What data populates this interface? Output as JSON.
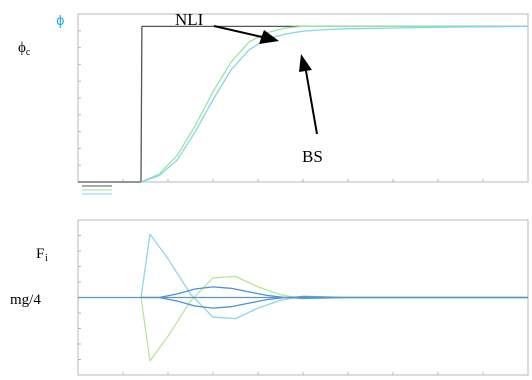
{
  "chart_data": [
    {
      "type": "line",
      "title": "",
      "annotations": {
        "ylabel": "ϕc",
        "corner_mark": "ϕ",
        "arrow_upper": "NLI",
        "arrow_lower": "BS"
      },
      "xlim": [
        0,
        1
      ],
      "ylim": [
        0,
        1.08
      ],
      "grid": false,
      "legend": "below-left",
      "series": [
        {
          "color": "#555555",
          "x": [
            0,
            0.14,
            0.142,
            1
          ],
          "y": [
            0,
            0,
            1,
            1
          ]
        },
        {
          "color": "#9ee2a0",
          "x": [
            0.14,
            0.18,
            0.22,
            0.26,
            0.3,
            0.34,
            0.38,
            0.42,
            0.46,
            0.5,
            0.55,
            0.6,
            0.7,
            0.8,
            1.0
          ],
          "y": [
            0,
            0.05,
            0.17,
            0.36,
            0.58,
            0.77,
            0.9,
            0.96,
            0.99,
            1.0,
            1.0,
            1.0,
            1.0,
            1.0,
            1.0
          ]
        },
        {
          "color": "#7fd8ea",
          "x": [
            0.14,
            0.18,
            0.22,
            0.26,
            0.3,
            0.34,
            0.38,
            0.42,
            0.46,
            0.5,
            0.55,
            0.6,
            0.7,
            0.8,
            1.0
          ],
          "y": [
            0,
            0.04,
            0.14,
            0.32,
            0.53,
            0.72,
            0.85,
            0.92,
            0.95,
            0.97,
            0.98,
            0.985,
            0.99,
            0.995,
            1.0
          ]
        }
      ]
    },
    {
      "type": "line",
      "title": "",
      "annotations": {
        "ylabel": "Fi",
        "ylabel_base": "F",
        "ylabel_sub": "i",
        "reference_label": "mg/4"
      },
      "xlim": [
        0,
        1
      ],
      "ylim": [
        -1.1,
        1.1
      ],
      "grid": false,
      "series": [
        {
          "color": "#8fd6e6",
          "x": [
            0.14,
            0.16,
            0.2,
            0.25,
            0.3,
            0.35,
            0.4,
            0.45,
            0.5,
            0.6,
            0.7,
            1.0
          ],
          "y": [
            0.0,
            0.9,
            0.55,
            0.05,
            -0.28,
            -0.3,
            -0.15,
            -0.04,
            0.02,
            0.0,
            0.0,
            0.0
          ]
        },
        {
          "color": "#b9e59b",
          "x": [
            0.14,
            0.16,
            0.2,
            0.25,
            0.3,
            0.35,
            0.4,
            0.45,
            0.5,
            0.6,
            0.7,
            1.0
          ],
          "y": [
            0.0,
            -0.9,
            -0.55,
            -0.05,
            0.28,
            0.3,
            0.15,
            0.04,
            -0.02,
            0.0,
            0.0,
            0.0
          ]
        },
        {
          "color": "#4d8fd8",
          "x": [
            0.14,
            0.18,
            0.22,
            0.26,
            0.3,
            0.34,
            0.38,
            0.42,
            0.46,
            0.5,
            0.6,
            0.7,
            1.0
          ],
          "y": [
            0.0,
            0.0,
            0.05,
            0.12,
            0.15,
            0.13,
            0.08,
            0.03,
            0.0,
            -0.01,
            0.0,
            0.0,
            0.0
          ]
        },
        {
          "color": "#4d8fd8",
          "x": [
            0.14,
            0.18,
            0.22,
            0.26,
            0.3,
            0.34,
            0.38,
            0.42,
            0.46,
            0.5,
            0.6,
            0.7,
            1.0
          ],
          "y": [
            0.0,
            0.0,
            -0.05,
            -0.12,
            -0.15,
            -0.13,
            -0.08,
            -0.03,
            0.0,
            0.01,
            0.0,
            0.0,
            0.0
          ]
        },
        {
          "color": "#5a95c8",
          "x": [
            0,
            1
          ],
          "y": [
            0,
            0
          ]
        }
      ]
    }
  ]
}
